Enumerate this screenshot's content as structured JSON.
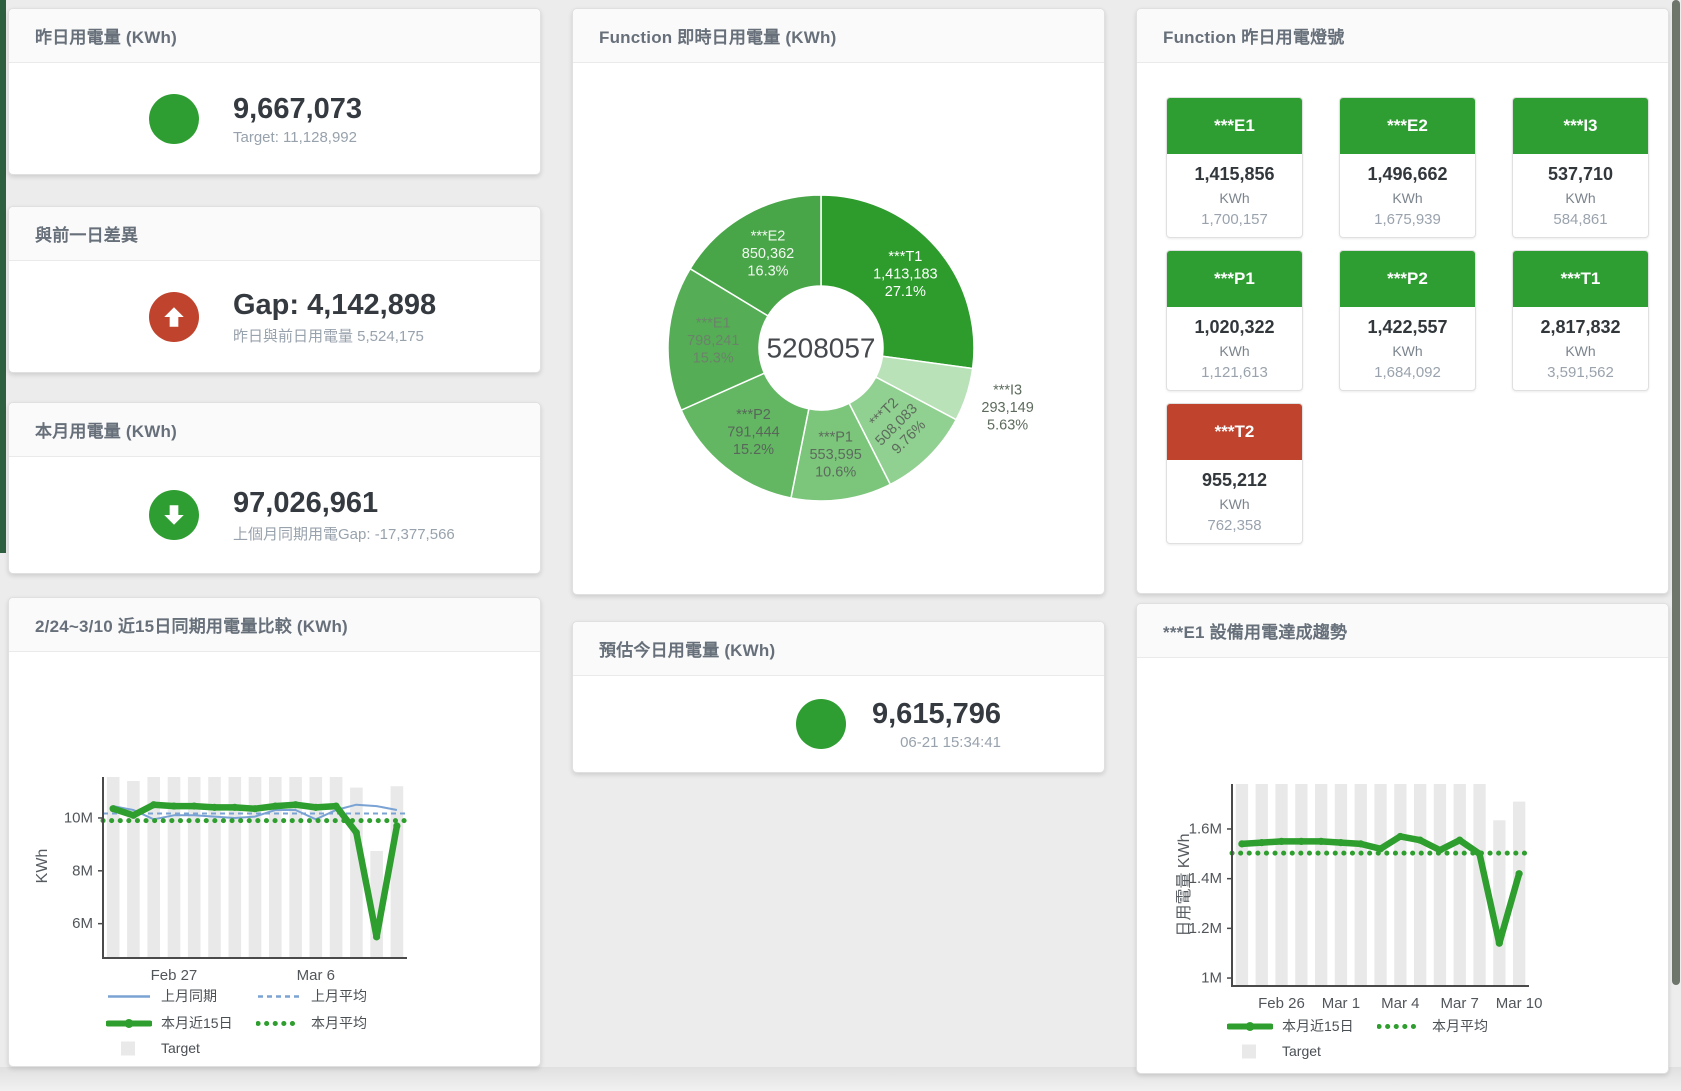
{
  "cards": {
    "yesterday": {
      "title": "昨日用電量 (KWh)",
      "value": "9,667,073",
      "sub": "Target: 11,128,992",
      "status_color": "#2f9e32"
    },
    "gap": {
      "title": "與前一日差異",
      "value": "Gap: 4,142,898",
      "sub": "昨日與前日用電量 5,524,175",
      "status_color": "#c0432e"
    },
    "month": {
      "title": "本月用電量 (KWh)",
      "value": "97,026,961",
      "sub": "上個月同期用電Gap: -17,377,566",
      "status_color": "#2f9e32"
    },
    "estimate": {
      "title": "預估今日用電量 (KWh)",
      "value": "9,615,796",
      "sub": "06-21 15:34:41",
      "status_color": "#2f9e32"
    }
  },
  "lights": {
    "title": "Function 昨日用電燈號",
    "unit": "KWh",
    "colors": {
      "ok": "#2f9e32",
      "alert": "#c0432e"
    },
    "tiles": [
      {
        "name": "***E1",
        "value": "1,415,856",
        "target": "1,700,157",
        "status": "ok"
      },
      {
        "name": "***E2",
        "value": "1,496,662",
        "target": "1,675,939",
        "status": "ok"
      },
      {
        "name": "***I3",
        "value": "537,710",
        "target": "584,861",
        "status": "ok"
      },
      {
        "name": "***P1",
        "value": "1,020,322",
        "target": "1,121,613",
        "status": "ok"
      },
      {
        "name": "***P2",
        "value": "1,422,557",
        "target": "1,684,092",
        "status": "ok"
      },
      {
        "name": "***T1",
        "value": "2,817,832",
        "target": "3,591,562",
        "status": "ok"
      },
      {
        "name": "***T2",
        "value": "955,212",
        "target": "762,358",
        "status": "alert"
      }
    ]
  },
  "chart_data": [
    {
      "type": "pie",
      "title": "Function 即時日用電量 (KWh)",
      "center_total": "5208057",
      "legend_position": "none",
      "slices": [
        {
          "label": "***T1",
          "value": 1413183,
          "display": "1,413,183",
          "pct": "27.1%",
          "color": "#2d9c2d",
          "text_color": "#ffffff",
          "label_r": 112
        },
        {
          "label": "***I3",
          "value": 293149,
          "display": "293,149",
          "pct": "5.63%",
          "color": "#b9e2b9",
          "text_color": "#5c6b5c",
          "outside": true
        },
        {
          "label": "***T2",
          "value": 508083,
          "display": "508,083",
          "pct": "9.76%",
          "color": "#90d090",
          "text_color": "#5c6b5c",
          "rotate": -45
        },
        {
          "label": "***P1",
          "value": 553595,
          "display": "553,595",
          "pct": "10.6%",
          "color": "#7cc67c",
          "text_color": "#5c6b5c"
        },
        {
          "label": "***P2",
          "value": 791444,
          "display": "791,444",
          "pct": "15.2%",
          "color": "#63b763",
          "text_color": "#58675a"
        },
        {
          "label": "***E1",
          "value": 798241,
          "display": "798,241",
          "pct": "15.3%",
          "color": "#55ae55",
          "text_color": "#6b826b"
        },
        {
          "label": "***E2",
          "value": 850362,
          "display": "850,362",
          "pct": "16.3%",
          "color": "#48a648",
          "text_color": "#f2f8f2"
        }
      ]
    },
    {
      "type": "bar+line",
      "title": "2/24~3/10 近15日同期用電量比較 (KWh)",
      "ylabel": "KWh",
      "x_days": 15,
      "xticks": [
        {
          "index": 3,
          "label": "Feb 27"
        },
        {
          "index": 10,
          "label": "Mar 6"
        }
      ],
      "yticks": [
        {
          "value": 6000000,
          "label": "6M"
        },
        {
          "value": 8000000,
          "label": "8M"
        },
        {
          "value": 10000000,
          "label": "10M"
        }
      ],
      "ylim": [
        4700000,
        11550000
      ],
      "grid": false,
      "target_bars": {
        "name": "Target",
        "color": "#e9e9e9",
        "values": [
          11550000,
          11400000,
          11550000,
          11550000,
          11550000,
          11550000,
          11550000,
          11550000,
          11550000,
          11550000,
          11550000,
          11550000,
          11150000,
          8750000,
          11200000
        ]
      },
      "series": [
        {
          "name": "上月同期",
          "style": "thin",
          "color": "#7aa3d4",
          "values": [
            10450000,
            10300000,
            9950000,
            10100000,
            10100000,
            10050000,
            10000000,
            10050000,
            10300000,
            10300000,
            9950000,
            10300000,
            10500000,
            10450000,
            10300000
          ]
        },
        {
          "name": "上月平均",
          "style": "dash",
          "color": "#7aa3d4",
          "values_const": 10170000
        },
        {
          "name": "本月近15日",
          "style": "thick",
          "color": "#2e9e2e",
          "values": [
            10350000,
            10100000,
            10500000,
            10450000,
            10450000,
            10400000,
            10400000,
            10350000,
            10450000,
            10500000,
            10400000,
            10450000,
            9450000,
            5500000,
            9700000
          ]
        },
        {
          "name": "本月平均",
          "style": "dots",
          "color": "#2e9e2e",
          "values_const": 9900000
        }
      ],
      "legend_rows": [
        [
          "上月同期",
          "上月平均"
        ],
        [
          "本月近15日",
          "本月平均"
        ],
        [
          "Target"
        ]
      ]
    },
    {
      "type": "bar+line",
      "title": "***E1 設備用電達成趨勢",
      "ylabel": "日用電量 KWh",
      "x_days": 15,
      "xticks": [
        {
          "index": 2,
          "label": "Feb 26"
        },
        {
          "index": 5,
          "label": "Mar 1"
        },
        {
          "index": 8,
          "label": "Mar 4"
        },
        {
          "index": 11,
          "label": "Mar 7"
        },
        {
          "index": 14,
          "label": "Mar 10"
        }
      ],
      "yticks": [
        {
          "value": 1000000,
          "label": "1M"
        },
        {
          "value": 1200000,
          "label": "1.2M"
        },
        {
          "value": 1400000,
          "label": "1.4M"
        },
        {
          "value": 1600000,
          "label": "1.6M"
        }
      ],
      "ylim": [
        968000,
        1781000
      ],
      "grid": false,
      "target_bars": {
        "name": "Target",
        "color": "#e9e9e9",
        "values": [
          1781000,
          1781000,
          1781000,
          1781000,
          1781000,
          1781000,
          1781000,
          1781000,
          1781000,
          1781000,
          1781000,
          1781000,
          1781000,
          1635000,
          1710000
        ]
      },
      "series": [
        {
          "name": "本月近15日",
          "style": "thick",
          "color": "#2e9e2e",
          "values": [
            1540000,
            1545000,
            1550000,
            1550000,
            1550000,
            1545000,
            1540000,
            1520000,
            1570000,
            1555000,
            1515000,
            1555000,
            1500000,
            1140000,
            1420000
          ]
        },
        {
          "name": "本月平均",
          "style": "dots",
          "color": "#2e9e2e",
          "values_const": 1503000
        }
      ],
      "legend_rows": [
        [
          "本月近15日",
          "本月平均"
        ],
        [
          "Target"
        ]
      ]
    }
  ]
}
